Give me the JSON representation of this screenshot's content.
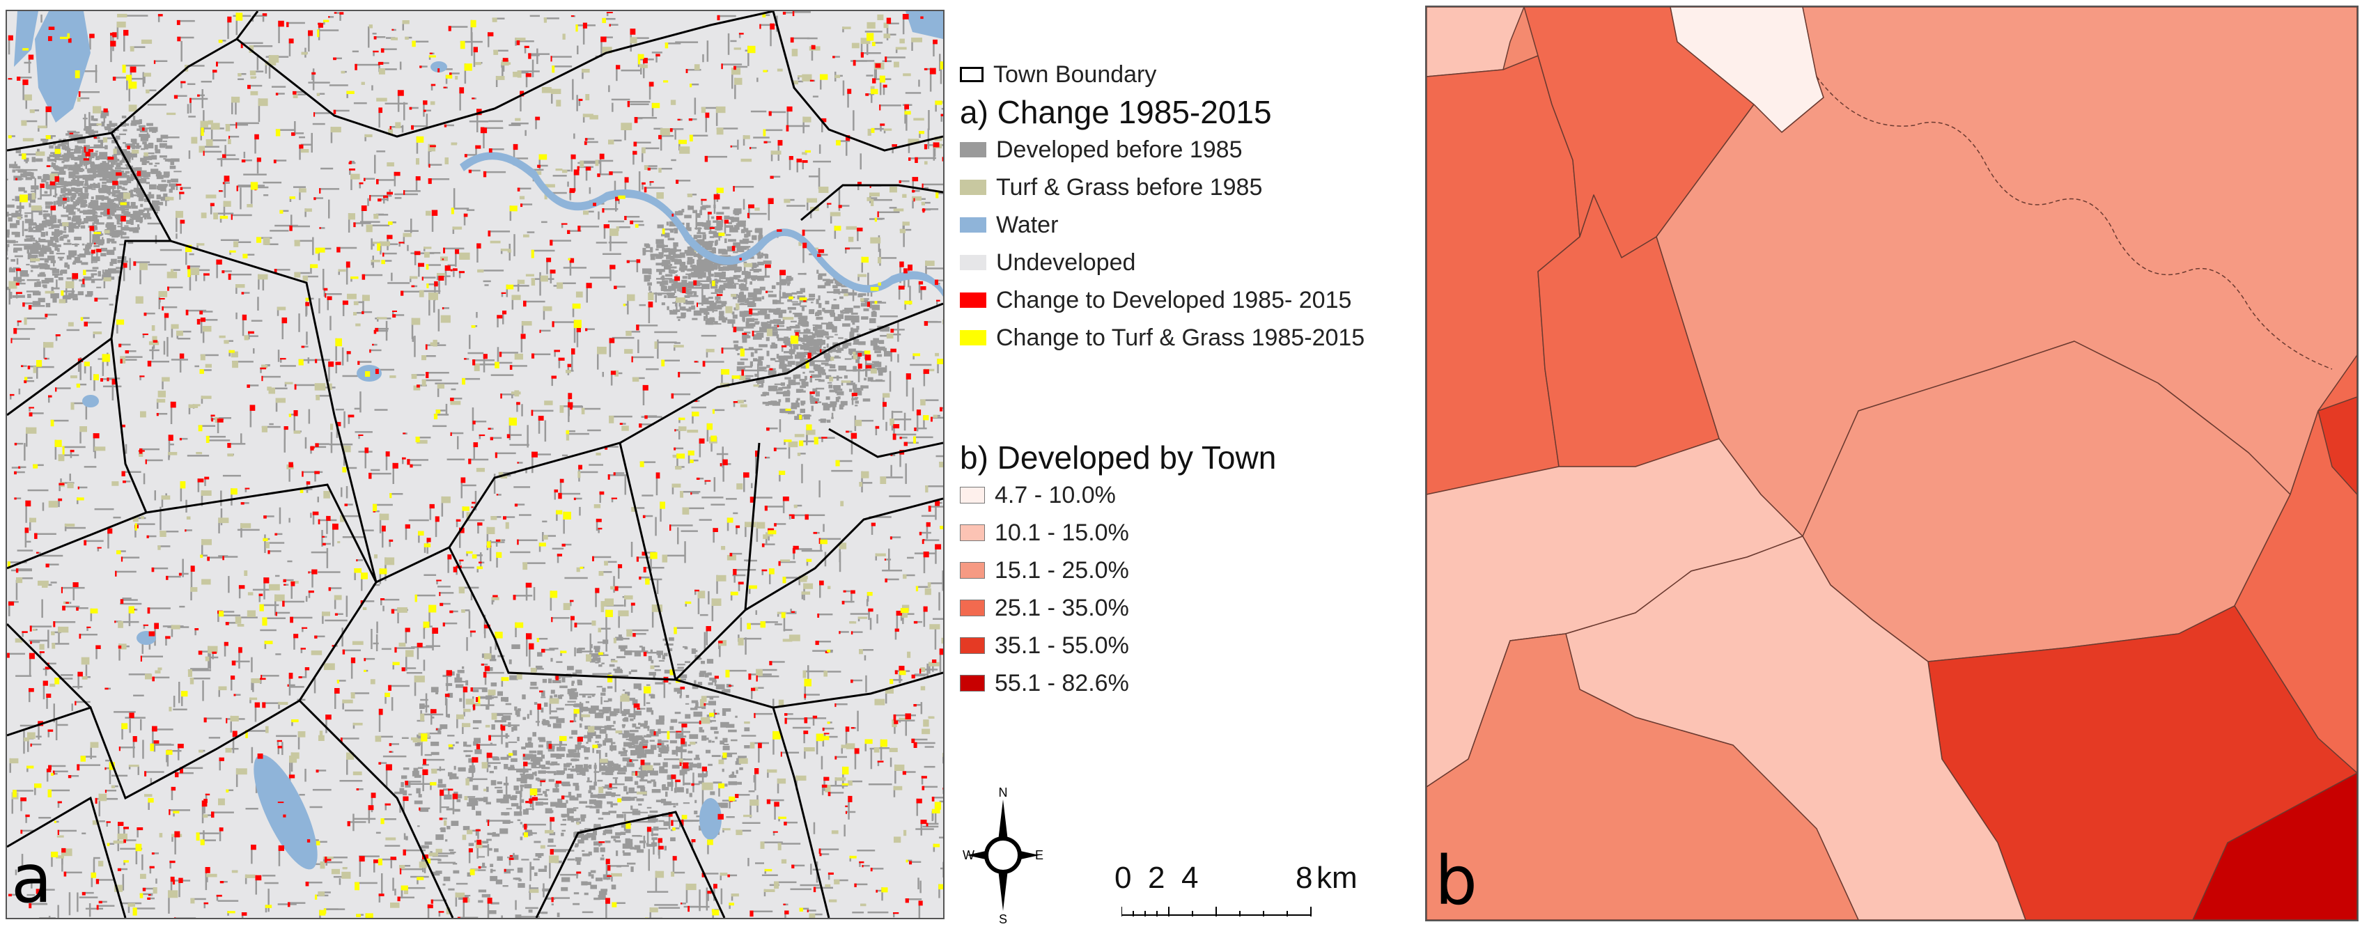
{
  "panel_a": {
    "letter": "a",
    "colors": {
      "undeveloped": "#e6e6e8",
      "developed_before": "#9a9a9a",
      "turf_before": "#c8c8a0",
      "water": "#8fb4d9",
      "change_dev": "#ff0000",
      "change_turf": "#ffff00",
      "boundary": "#000000"
    }
  },
  "legend": {
    "boundary_label": "Town Boundary",
    "section_a_title": "a) Change 1985-2015",
    "items_a": [
      {
        "label": "Developed before 1985",
        "color": "#9a9a9a"
      },
      {
        "label": "Turf & Grass before 1985",
        "color": "#c8c8a0"
      },
      {
        "label": "Water",
        "color": "#8fb4d9"
      },
      {
        "label": "Undeveloped",
        "color": "#e6e6e8"
      },
      {
        "label": "Change to Developed 1985- 2015",
        "color": "#ff0000"
      },
      {
        "label": "Change to Turf & Grass 1985-2015",
        "color": "#ffff00"
      }
    ],
    "section_b_title": "b) Developed by Town",
    "items_b": [
      {
        "label": "4.7 - 10.0%",
        "color": "#fef0ec"
      },
      {
        "label": "10.1 - 15.0%",
        "color": "#fcc3b4"
      },
      {
        "label": "15.1 - 25.0%",
        "color": "#f69a83"
      },
      {
        "label": "25.1 - 35.0%",
        "color": "#f26a4f"
      },
      {
        "label": "35.1 - 55.0%",
        "color": "#e53a24"
      },
      {
        "label": "55.1 - 82.6%",
        "color": "#c80000"
      }
    ]
  },
  "compass": {
    "n": "N",
    "s": "S",
    "e": "E",
    "w": "W"
  },
  "scale": {
    "ticks": [
      "0",
      "2",
      "4",
      "8"
    ],
    "unit": "km"
  },
  "panel_b": {
    "letter": "b"
  }
}
